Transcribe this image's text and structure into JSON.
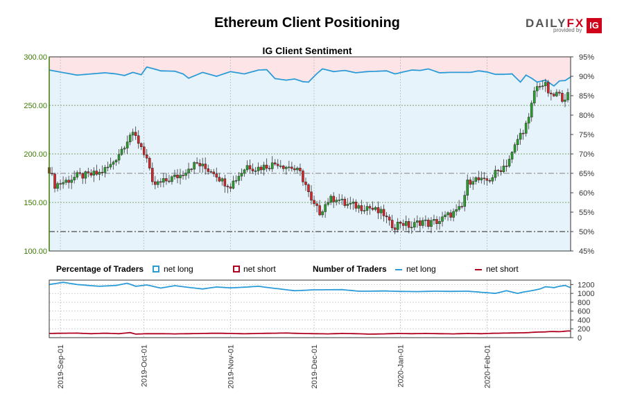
{
  "page": {
    "title": "Ethereum Client Positioning"
  },
  "logo": {
    "brand_main": "DAILY",
    "brand_accent": "FX",
    "tagline": "provided by",
    "partner": "IG"
  },
  "legend": {
    "pct_title": "Percentage of Traders",
    "pct_long": "net long",
    "pct_short": "net short",
    "num_title": "Number of Traders",
    "num_long": "net long",
    "num_short": "net short"
  },
  "colors": {
    "bull": "#2ca02c",
    "bear": "#d62728",
    "long_line": "#2b9bd8",
    "short_line": "#b00020",
    "long_fill": "#e6f3fb",
    "short_fill": "#fde4e6",
    "axis_left": "#3a7a00"
  },
  "chart_data": [
    {
      "type": "candlestick",
      "title": "IG Client Sentiment",
      "xlabel": "",
      "ylabel": "",
      "ylim": [
        100,
        300
      ],
      "y2lim": [
        45,
        95
      ],
      "yticks": [
        "100.00",
        "150.00",
        "200.00",
        "250.00",
        "300.00"
      ],
      "y2ticks": [
        "45%",
        "50%",
        "55%",
        "60%",
        "65%",
        "70%",
        "75%",
        "80%",
        "85%",
        "90%",
        "95%"
      ],
      "xticks": [
        "2019-Sep-01",
        "2019-Oct-01",
        "2019-Nov-01",
        "2019-Dec-01",
        "2020-Jan-01",
        "2020-Feb-01"
      ],
      "xtick_pos": [
        4,
        34,
        65,
        95,
        126,
        157
      ],
      "n_days": 175,
      "ref_lines_right_axis": [
        50,
        65
      ],
      "grid": true,
      "price_keypoints": [
        [
          0,
          184
        ],
        [
          2,
          168
        ],
        [
          6,
          172
        ],
        [
          10,
          177
        ],
        [
          14,
          178
        ],
        [
          18,
          180
        ],
        [
          22,
          188
        ],
        [
          26,
          205
        ],
        [
          29,
          220
        ],
        [
          31,
          217
        ],
        [
          33,
          208
        ],
        [
          35,
          195
        ],
        [
          37,
          168
        ],
        [
          40,
          170
        ],
        [
          44,
          175
        ],
        [
          47,
          178
        ],
        [
          50,
          186
        ],
        [
          53,
          190
        ],
        [
          56,
          185
        ],
        [
          59,
          182
        ],
        [
          62,
          172
        ],
        [
          65,
          168
        ],
        [
          68,
          178
        ],
        [
          71,
          188
        ],
        [
          74,
          185
        ],
        [
          77,
          187
        ],
        [
          80,
          189
        ],
        [
          82,
          191
        ],
        [
          84,
          188
        ],
        [
          87,
          186
        ],
        [
          90,
          180
        ],
        [
          92,
          168
        ],
        [
          94,
          150
        ],
        [
          97,
          140
        ],
        [
          100,
          152
        ],
        [
          103,
          155
        ],
        [
          106,
          148
        ],
        [
          109,
          147
        ],
        [
          112,
          145
        ],
        [
          114,
          146
        ],
        [
          116,
          143
        ],
        [
          118,
          140
        ],
        [
          120,
          138
        ],
        [
          122,
          128
        ],
        [
          124,
          126
        ],
        [
          126,
          130
        ],
        [
          128,
          127
        ],
        [
          130,
          125
        ],
        [
          132,
          129
        ],
        [
          134,
          131
        ],
        [
          136,
          128
        ],
        [
          138,
          130
        ],
        [
          140,
          131
        ],
        [
          142,
          135
        ],
        [
          144,
          138
        ],
        [
          146,
          140
        ],
        [
          148,
          145
        ],
        [
          150,
          170
        ],
        [
          152,
          175
        ],
        [
          154,
          173
        ],
        [
          156,
          171
        ],
        [
          158,
          174
        ],
        [
          160,
          180
        ],
        [
          162,
          185
        ],
        [
          164,
          190
        ],
        [
          166,
          200
        ],
        [
          168,
          215
        ],
        [
          170,
          225
        ],
        [
          172,
          235
        ],
        [
          174,
          265
        ],
        [
          176,
          272
        ],
        [
          178,
          270
        ],
        [
          180,
          258
        ],
        [
          182,
          262
        ],
        [
          184,
          258
        ],
        [
          186,
          260
        ]
      ],
      "long_pct_keypoints": [
        [
          0,
          91.6
        ],
        [
          10,
          90.3
        ],
        [
          20,
          90.9
        ],
        [
          24,
          90.6
        ],
        [
          27,
          90.2
        ],
        [
          30,
          91.0
        ],
        [
          33,
          90.4
        ],
        [
          35,
          92.4
        ],
        [
          40,
          91.4
        ],
        [
          45,
          91.3
        ],
        [
          48,
          90.6
        ],
        [
          50,
          89.5
        ],
        [
          55,
          91.0
        ],
        [
          60,
          90.0
        ],
        [
          65,
          91.2
        ],
        [
          70,
          90.6
        ],
        [
          75,
          91.6
        ],
        [
          78,
          91.7
        ],
        [
          81,
          89.4
        ],
        [
          85,
          89.0
        ],
        [
          88,
          89.3
        ],
        [
          91,
          88.6
        ],
        [
          93,
          88.5
        ],
        [
          96,
          90.7
        ],
        [
          98,
          91.9
        ],
        [
          102,
          91.2
        ],
        [
          106,
          91.5
        ],
        [
          110,
          90.9
        ],
        [
          114,
          91.2
        ],
        [
          118,
          91.3
        ],
        [
          121,
          91.4
        ],
        [
          124,
          90.6
        ],
        [
          127,
          91.1
        ],
        [
          130,
          91.6
        ],
        [
          133,
          91.5
        ],
        [
          136,
          91.9
        ],
        [
          140,
          90.9
        ],
        [
          144,
          91.0
        ],
        [
          148,
          91.0
        ],
        [
          151,
          91.0
        ],
        [
          154,
          91.4
        ],
        [
          157,
          91.1
        ],
        [
          160,
          90.5
        ],
        [
          163,
          90.5
        ],
        [
          166,
          90.6
        ],
        [
          169,
          88.5
        ],
        [
          171,
          90.3
        ],
        [
          173,
          89.5
        ],
        [
          175,
          88.5
        ],
        [
          178,
          89.0
        ],
        [
          181,
          87.5
        ],
        [
          183,
          88.8
        ],
        [
          185,
          88.9
        ],
        [
          187,
          89.8
        ]
      ],
      "num_long_keypoints": [
        [
          0,
          1200
        ],
        [
          5,
          1250
        ],
        [
          10,
          1200
        ],
        [
          18,
          1160
        ],
        [
          24,
          1180
        ],
        [
          28,
          1230
        ],
        [
          31,
          1160
        ],
        [
          35,
          1190
        ],
        [
          40,
          1120
        ],
        [
          45,
          1175
        ],
        [
          50,
          1135
        ],
        [
          55,
          1100
        ],
        [
          60,
          1145
        ],
        [
          65,
          1125
        ],
        [
          70,
          1140
        ],
        [
          75,
          1160
        ],
        [
          80,
          1120
        ],
        [
          88,
          1060
        ],
        [
          95,
          1080
        ],
        [
          105,
          1085
        ],
        [
          111,
          1050
        ],
        [
          115,
          1050
        ],
        [
          120,
          1055
        ],
        [
          126,
          1045
        ],
        [
          132,
          1040
        ],
        [
          138,
          1050
        ],
        [
          144,
          1045
        ],
        [
          150,
          1050
        ],
        [
          156,
          1020
        ],
        [
          160,
          1000
        ],
        [
          164,
          1060
        ],
        [
          168,
          1000
        ],
        [
          170,
          1030
        ],
        [
          173,
          1060
        ],
        [
          176,
          1100
        ],
        [
          178,
          1150
        ],
        [
          181,
          1130
        ],
        [
          183,
          1160
        ],
        [
          185,
          1180
        ],
        [
          187,
          1130
        ]
      ],
      "num_short_keypoints": [
        [
          0,
          95
        ],
        [
          5,
          100
        ],
        [
          10,
          103
        ],
        [
          15,
          90
        ],
        [
          20,
          100
        ],
        [
          25,
          90
        ],
        [
          29,
          115
        ],
        [
          31,
          80
        ],
        [
          35,
          90
        ],
        [
          40,
          90
        ],
        [
          45,
          85
        ],
        [
          50,
          90
        ],
        [
          55,
          95
        ],
        [
          60,
          100
        ],
        [
          65,
          95
        ],
        [
          70,
          88
        ],
        [
          75,
          95
        ],
        [
          80,
          100
        ],
        [
          85,
          105
        ],
        [
          90,
          95
        ],
        [
          95,
          90
        ],
        [
          100,
          85
        ],
        [
          105,
          95
        ],
        [
          110,
          90
        ],
        [
          115,
          80
        ],
        [
          120,
          85
        ],
        [
          125,
          95
        ],
        [
          130,
          90
        ],
        [
          135,
          95
        ],
        [
          140,
          90
        ],
        [
          145,
          85
        ],
        [
          150,
          95
        ],
        [
          155,
          90
        ],
        [
          160,
          100
        ],
        [
          165,
          105
        ],
        [
          170,
          110
        ],
        [
          172,
          115
        ],
        [
          175,
          125
        ],
        [
          178,
          130
        ],
        [
          180,
          140
        ],
        [
          183,
          135
        ],
        [
          186,
          150
        ]
      ],
      "lower_y2lim": [
        0,
        1300
      ],
      "lower_yticks": [
        "0",
        "200",
        "400",
        "600",
        "800",
        "1000",
        "1200"
      ]
    }
  ]
}
